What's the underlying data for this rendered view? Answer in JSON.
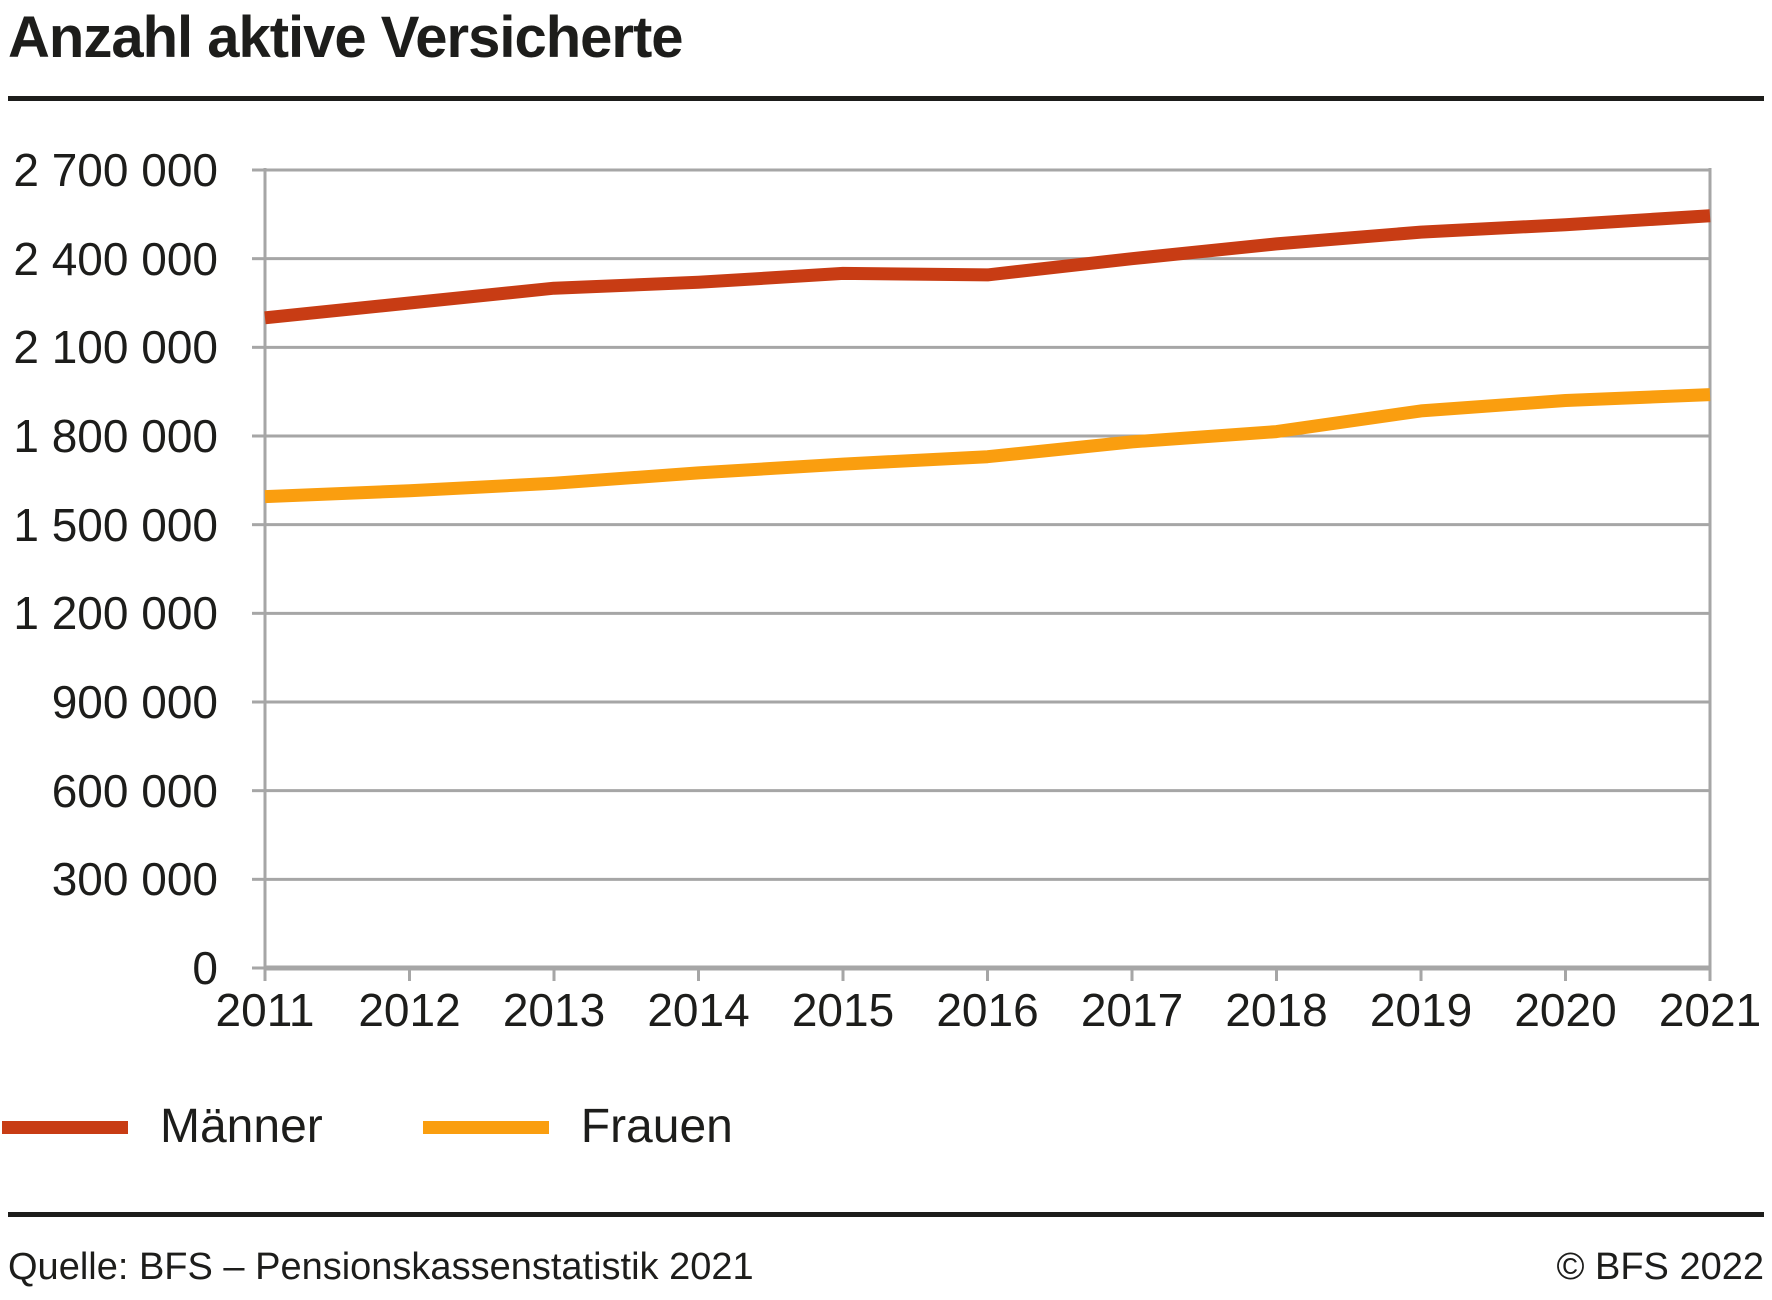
{
  "title": "Anzahl aktive Versicherte",
  "chart_data": {
    "type": "line",
    "x": [
      "2011",
      "2012",
      "2013",
      "2014",
      "2015",
      "2016",
      "2017",
      "2018",
      "2019",
      "2020",
      "2021"
    ],
    "series": [
      {
        "name": "Männer",
        "color": "#c83c14",
        "values": [
          2200000,
          2250000,
          2300000,
          2320000,
          2350000,
          2345000,
          2400000,
          2450000,
          2490000,
          2515000,
          2545000
        ]
      },
      {
        "name": "Frauen",
        "color": "#fa9e0f",
        "values": [
          1595000,
          1615000,
          1640000,
          1675000,
          1705000,
          1730000,
          1780000,
          1815000,
          1885000,
          1920000,
          1940000
        ]
      }
    ],
    "title": "Anzahl aktive Versicherte",
    "xlabel": "",
    "ylabel": "",
    "ylim": [
      0,
      2700000
    ],
    "ytick_step": 300000,
    "ytick_labels": [
      "0",
      "300 000",
      "600 000",
      "900 000",
      "1 200 000",
      "1 500 000",
      "1 800 000",
      "2 100 000",
      "2 400 000",
      "2 700 000"
    ],
    "grid": "horizontal",
    "grid_color": "#a6a6a6",
    "legend_position": "bottom-left"
  },
  "footer": {
    "source": "Quelle: BFS – Pensionskassenstatistik 2021",
    "copyright": "© BFS 2022"
  }
}
